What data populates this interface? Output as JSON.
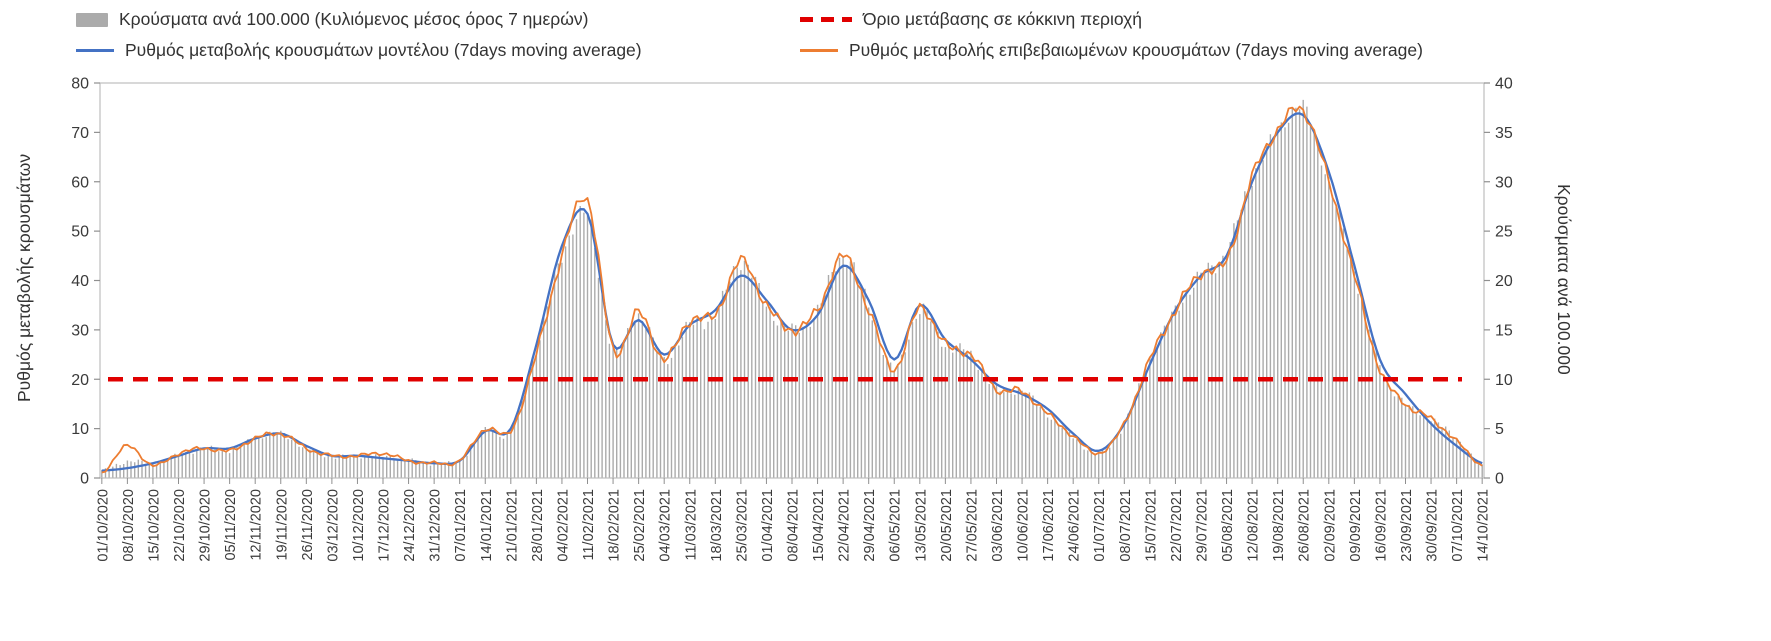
{
  "legend": {
    "bars_label": "Κρούσματα ανά 100.000 (Κυλιόμενος μέσος όρος 7 ημερών)",
    "threshold_label": "Όριο μετάβασης σε κόκκινη περιοχή",
    "model_label": "Ρυθμός μεταβολής κρουσμάτων μοντέλου (7days moving average)",
    "confirmed_label": "Ρυθμός μεταβολής επιβεβαιωμένων κρουσμάτων (7days moving average)"
  },
  "axes": {
    "left_title": "Ρυθμός μεταβολής κρουσμάτων",
    "right_title": "Κρούσματα ανά 100.000",
    "left_ticks": [
      0,
      10,
      20,
      30,
      40,
      50,
      60,
      70,
      80
    ],
    "right_ticks": [
      0,
      5,
      10,
      15,
      20,
      25,
      30,
      35,
      40
    ]
  },
  "colors": {
    "bars": "#ababab",
    "model_line": "#4472c4",
    "confirmed_line": "#ed7d31",
    "threshold_line": "#e00000",
    "text": "#3a3a3a",
    "frame": "#bdbdbd",
    "tick": "#8f8f8f"
  },
  "chart_data": {
    "type": "combo bar+line",
    "grid": false,
    "legend_position": "top",
    "left_ylim": [
      0,
      80
    ],
    "right_ylim": [
      0,
      40
    ],
    "categories": [
      "01/10/2020",
      "08/10/2020",
      "15/10/2020",
      "22/10/2020",
      "29/10/2020",
      "05/11/2020",
      "12/11/2020",
      "19/11/2020",
      "26/11/2020",
      "03/12/2020",
      "10/12/2020",
      "17/12/2020",
      "24/12/2020",
      "31/12/2020",
      "07/01/2021",
      "14/01/2021",
      "21/01/2021",
      "28/01/2021",
      "04/02/2021",
      "11/02/2021",
      "18/02/2021",
      "25/02/2021",
      "04/03/2021",
      "11/03/2021",
      "18/03/2021",
      "25/03/2021",
      "01/04/2021",
      "08/04/2021",
      "15/04/2021",
      "22/04/2021",
      "29/04/2021",
      "06/05/2021",
      "13/05/2021",
      "20/05/2021",
      "27/05/2021",
      "03/06/2021",
      "10/06/2021",
      "17/06/2021",
      "24/06/2021",
      "01/07/2021",
      "08/07/2021",
      "15/07/2021",
      "22/07/2021",
      "29/07/2021",
      "05/08/2021",
      "12/08/2021",
      "19/08/2021",
      "26/08/2021",
      "02/09/2021",
      "09/09/2021",
      "16/09/2021",
      "23/09/2021",
      "30/09/2021",
      "07/10/2021",
      "14/10/2021"
    ],
    "series": [
      {
        "name": "Κρούσματα ανά 100.000 (Κυλιόμενος μέσος όρος 7 ημερών)",
        "render": "bar",
        "axis": "right",
        "values": [
          0.7,
          1.7,
          1.5,
          2.3,
          3,
          2.8,
          4,
          4.5,
          3,
          2.2,
          2.2,
          2.2,
          1.8,
          1.5,
          1.8,
          4.8,
          4.8,
          13,
          22.5,
          26.5,
          13,
          16.5,
          12,
          15.5,
          16.5,
          22,
          17.5,
          15,
          17,
          22.5,
          17.5,
          11,
          17,
          13.5,
          12.5,
          9,
          8.8,
          6.5,
          4.2,
          2.5,
          5.5,
          12,
          17,
          20.5,
          23,
          30.5,
          35,
          37.5,
          30,
          21,
          11.5,
          7.5,
          6,
          4,
          1.2
        ]
      },
      {
        "name": "Ρυθμός μεταβολής κρουσμάτων μοντέλου (7days moving average)",
        "render": "line",
        "axis": "left",
        "values": [
          1.5,
          2,
          3,
          4.5,
          6,
          6,
          8,
          9,
          6.5,
          4.5,
          4.5,
          4,
          3.5,
          3,
          3.5,
          9.5,
          10,
          27,
          47,
          53.5,
          27,
          32,
          25,
          31,
          34,
          41,
          36,
          30,
          33,
          43,
          36,
          24,
          35,
          28,
          24,
          19,
          17,
          14,
          9,
          5.5,
          11,
          23,
          34,
          41,
          45,
          60,
          70,
          73.5,
          62,
          43,
          24,
          17,
          11,
          6.5,
          3
        ]
      },
      {
        "name": "Ρυθμός μεταβολής επιβεβαιωμένων κρουσμάτων (7days moving average)",
        "render": "line",
        "axis": "left",
        "values": [
          1,
          6.5,
          2.5,
          5,
          6,
          5.5,
          8,
          9,
          6,
          4.5,
          4.5,
          5,
          3.5,
          3,
          3.5,
          10,
          9.5,
          25,
          45,
          56.5,
          26,
          33.5,
          24,
          32,
          33,
          44,
          35,
          30,
          34,
          45,
          34,
          22,
          34.5,
          27,
          25,
          18,
          17.5,
          13,
          8.5,
          5,
          11,
          24,
          34,
          41.5,
          44,
          61,
          70.5,
          74.5,
          60,
          41,
          22,
          15,
          12,
          7.5,
          2.5
        ]
      },
      {
        "name": "Όριο μετάβασης σε κόκκινη περιοχή",
        "render": "threshold",
        "axis": "left",
        "value_left_axis": 20,
        "value_right_axis": 10
      }
    ]
  }
}
